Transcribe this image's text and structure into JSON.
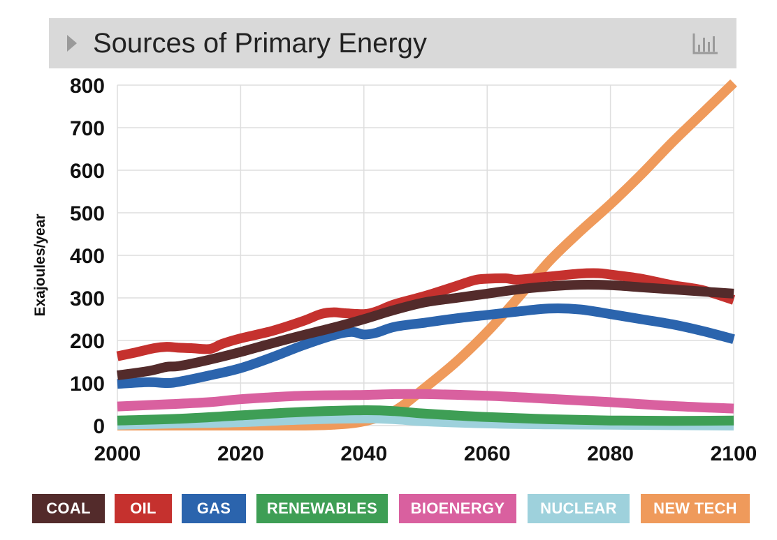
{
  "header": {
    "title": "Sources of Primary Energy",
    "arrow_icon": "triangle-right-icon",
    "chart_icon": "bar-chart-icon"
  },
  "chart_data": {
    "type": "line",
    "title": "Sources of Primary Energy",
    "xlabel": "",
    "ylabel": "Exajoules/year",
    "xlim": [
      2000,
      2100
    ],
    "ylim": [
      0,
      800
    ],
    "xticks": [
      2000,
      2020,
      2040,
      2060,
      2080,
      2100
    ],
    "yticks": [
      0,
      100,
      200,
      300,
      400,
      500,
      600,
      700,
      800
    ],
    "grid": true,
    "legend_position": "bottom",
    "series": [
      {
        "name": "NEW TECH",
        "color": "#ef9a5b",
        "points": [
          [
            2000,
            0
          ],
          [
            2020,
            0
          ],
          [
            2030,
            0
          ],
          [
            2035,
            2
          ],
          [
            2040,
            10
          ],
          [
            2045,
            35
          ],
          [
            2050,
            90
          ],
          [
            2055,
            150
          ],
          [
            2060,
            220
          ],
          [
            2065,
            300
          ],
          [
            2070,
            385
          ],
          [
            2075,
            455
          ],
          [
            2080,
            520
          ],
          [
            2085,
            590
          ],
          [
            2090,
            665
          ],
          [
            2095,
            735
          ],
          [
            2100,
            805
          ]
        ]
      },
      {
        "name": "NUCLEAR",
        "color": "#9ed1dc",
        "points": [
          [
            2000,
            2
          ],
          [
            2010,
            5
          ],
          [
            2020,
            8
          ],
          [
            2030,
            14
          ],
          [
            2040,
            17
          ],
          [
            2045,
            15
          ],
          [
            2050,
            10
          ],
          [
            2060,
            5
          ],
          [
            2070,
            3
          ],
          [
            2080,
            2
          ],
          [
            2090,
            1
          ],
          [
            2100,
            0
          ]
        ]
      },
      {
        "name": "RENEWABLES",
        "color": "#3e9e55",
        "points": [
          [
            2000,
            12
          ],
          [
            2010,
            16
          ],
          [
            2020,
            24
          ],
          [
            2030,
            32
          ],
          [
            2040,
            36
          ],
          [
            2045,
            34
          ],
          [
            2050,
            28
          ],
          [
            2060,
            20
          ],
          [
            2070,
            15
          ],
          [
            2080,
            12
          ],
          [
            2090,
            11
          ],
          [
            2100,
            12
          ]
        ]
      },
      {
        "name": "BIOENERGY",
        "color": "#d9609f",
        "points": [
          [
            2000,
            45
          ],
          [
            2008,
            50
          ],
          [
            2015,
            55
          ],
          [
            2020,
            62
          ],
          [
            2030,
            70
          ],
          [
            2040,
            72
          ],
          [
            2045,
            74
          ],
          [
            2050,
            74
          ],
          [
            2060,
            70
          ],
          [
            2070,
            63
          ],
          [
            2080,
            55
          ],
          [
            2090,
            46
          ],
          [
            2100,
            40
          ]
        ]
      },
      {
        "name": "GAS",
        "color": "#2b64ad",
        "points": [
          [
            2000,
            98
          ],
          [
            2005,
            102
          ],
          [
            2008,
            100
          ],
          [
            2010,
            103
          ],
          [
            2015,
            118
          ],
          [
            2020,
            135
          ],
          [
            2025,
            160
          ],
          [
            2030,
            188
          ],
          [
            2035,
            212
          ],
          [
            2038,
            220
          ],
          [
            2040,
            214
          ],
          [
            2042,
            218
          ],
          [
            2045,
            232
          ],
          [
            2050,
            242
          ],
          [
            2055,
            252
          ],
          [
            2060,
            260
          ],
          [
            2065,
            268
          ],
          [
            2070,
            275
          ],
          [
            2075,
            273
          ],
          [
            2080,
            262
          ],
          [
            2085,
            250
          ],
          [
            2090,
            238
          ],
          [
            2095,
            222
          ],
          [
            2100,
            203
          ]
        ]
      },
      {
        "name": "OIL",
        "color": "#c5312e",
        "points": [
          [
            2000,
            163
          ],
          [
            2003,
            172
          ],
          [
            2006,
            182
          ],
          [
            2008,
            185
          ],
          [
            2010,
            183
          ],
          [
            2012,
            182
          ],
          [
            2015,
            180
          ],
          [
            2017,
            192
          ],
          [
            2020,
            205
          ],
          [
            2025,
            222
          ],
          [
            2030,
            245
          ],
          [
            2033,
            262
          ],
          [
            2035,
            266
          ],
          [
            2037,
            264
          ],
          [
            2040,
            262
          ],
          [
            2042,
            268
          ],
          [
            2045,
            285
          ],
          [
            2050,
            305
          ],
          [
            2055,
            328
          ],
          [
            2058,
            342
          ],
          [
            2060,
            345
          ],
          [
            2063,
            346
          ],
          [
            2065,
            343
          ],
          [
            2070,
            350
          ],
          [
            2075,
            357
          ],
          [
            2078,
            358
          ],
          [
            2080,
            355
          ],
          [
            2085,
            345
          ],
          [
            2090,
            330
          ],
          [
            2095,
            318
          ],
          [
            2100,
            295
          ]
        ]
      },
      {
        "name": "COAL",
        "color": "#532b2b",
        "points": [
          [
            2000,
            118
          ],
          [
            2005,
            128
          ],
          [
            2008,
            138
          ],
          [
            2010,
            140
          ],
          [
            2015,
            155
          ],
          [
            2020,
            173
          ],
          [
            2025,
            193
          ],
          [
            2030,
            212
          ],
          [
            2035,
            230
          ],
          [
            2040,
            250
          ],
          [
            2045,
            272
          ],
          [
            2050,
            290
          ],
          [
            2055,
            300
          ],
          [
            2060,
            310
          ],
          [
            2065,
            320
          ],
          [
            2070,
            327
          ],
          [
            2075,
            331
          ],
          [
            2080,
            330
          ],
          [
            2085,
            325
          ],
          [
            2090,
            320
          ],
          [
            2095,
            315
          ],
          [
            2100,
            310
          ]
        ]
      }
    ]
  },
  "legend": [
    {
      "label": "COAL",
      "color": "#532b2b"
    },
    {
      "label": "OIL",
      "color": "#c5312e"
    },
    {
      "label": "GAS",
      "color": "#2b64ad"
    },
    {
      "label": "RENEWABLES",
      "color": "#3e9e55"
    },
    {
      "label": "BIOENERGY",
      "color": "#d9609f"
    },
    {
      "label": "NUCLEAR",
      "color": "#9ed1dc"
    },
    {
      "label": "NEW TECH",
      "color": "#ef9a5b"
    }
  ]
}
